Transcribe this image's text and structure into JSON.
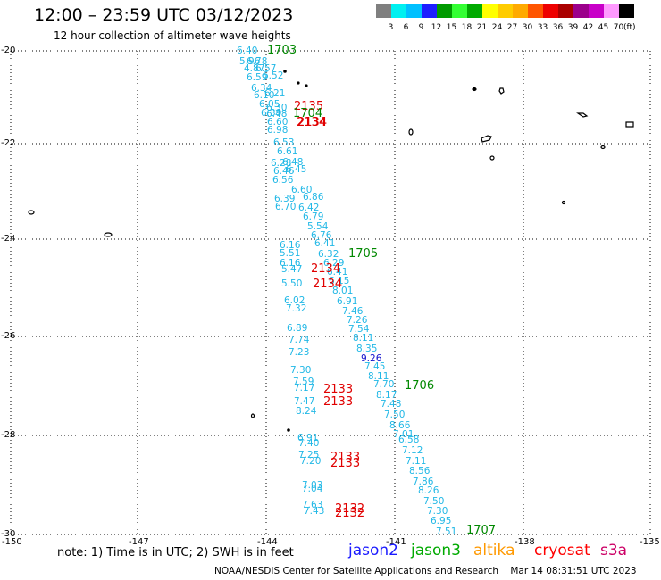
{
  "header": {
    "title": "12:00 – 23:59 UTC 03/12/2023",
    "subtitle": "12 hour collection of altimeter wave heights"
  },
  "color_scale": {
    "unit": "(ft)",
    "labels": [
      "3",
      "6",
      "9",
      "12",
      "15",
      "18",
      "21",
      "24",
      "27",
      "30",
      "33",
      "36",
      "39",
      "42",
      "45",
      "70"
    ],
    "colors": [
      "#7f7f7f",
      "#00f0f0",
      "#00c0ff",
      "#1e1eff",
      "#009a00",
      "#33ff33",
      "#00aa00",
      "#ffff00",
      "#ffcc00",
      "#ffaa00",
      "#ff5500",
      "#ee0000",
      "#aa0000",
      "#9b008b",
      "#c800c8",
      "#ff99ff",
      "#000000"
    ]
  },
  "axes": {
    "lon_labels": [
      "-150",
      "-147",
      "-144",
      "-141",
      "-138",
      "-135"
    ],
    "lat_labels": [
      "-20",
      "-22",
      "-24",
      "-26",
      "-28",
      "-30"
    ]
  },
  "wave_heights": [
    {
      "t": "6.40",
      "c": "cyan"
    },
    {
      "t": "5.96",
      "c": "cyan"
    },
    {
      "t": "6.78",
      "c": "cyan"
    },
    {
      "t": "4.87",
      "c": "cyan"
    },
    {
      "t": "6.57",
      "c": "cyan"
    },
    {
      "t": "6.52",
      "c": "cyan"
    },
    {
      "t": "6.59",
      "c": "cyan"
    },
    {
      "t": "6.34",
      "c": "cyan"
    },
    {
      "t": "6.21",
      "c": "cyan"
    },
    {
      "t": "6.10",
      "c": "cyan"
    },
    {
      "t": "6.05",
      "c": "cyan"
    },
    {
      "t": "6.30",
      "c": "cyan"
    },
    {
      "t": "6.39",
      "c": "cyan"
    },
    {
      "t": "6.48",
      "c": "cyan"
    },
    {
      "t": "6.60",
      "c": "cyan"
    },
    {
      "t": "6.98",
      "c": "cyan"
    },
    {
      "t": "6.53",
      "c": "cyan"
    },
    {
      "t": "6.61",
      "c": "cyan"
    },
    {
      "t": "6.28",
      "c": "cyan"
    },
    {
      "t": "6.48",
      "c": "cyan"
    },
    {
      "t": "6.46",
      "c": "cyan"
    },
    {
      "t": "6.45",
      "c": "cyan"
    },
    {
      "t": "6.56",
      "c": "cyan"
    },
    {
      "t": "6.60",
      "c": "cyan"
    },
    {
      "t": "6.39",
      "c": "cyan"
    },
    {
      "t": "6.86",
      "c": "cyan"
    },
    {
      "t": "6.70",
      "c": "cyan"
    },
    {
      "t": "6.42",
      "c": "cyan"
    },
    {
      "t": "6.79",
      "c": "cyan"
    },
    {
      "t": "5.54",
      "c": "cyan"
    },
    {
      "t": "6.76",
      "c": "cyan"
    },
    {
      "t": "6.16",
      "c": "cyan"
    },
    {
      "t": "6.41",
      "c": "cyan"
    },
    {
      "t": "5.51",
      "c": "cyan"
    },
    {
      "t": "6.32",
      "c": "cyan"
    },
    {
      "t": "6.16",
      "c": "cyan"
    },
    {
      "t": "6.29",
      "c": "cyan"
    },
    {
      "t": "5.47",
      "c": "cyan"
    },
    {
      "t": "6.41",
      "c": "cyan"
    },
    {
      "t": "5.50",
      "c": "cyan"
    },
    {
      "t": "6.15",
      "c": "cyan"
    },
    {
      "t": "8.01",
      "c": "cyan"
    },
    {
      "t": "6.02",
      "c": "cyan"
    },
    {
      "t": "6.91",
      "c": "cyan"
    },
    {
      "t": "7.32",
      "c": "cyan"
    },
    {
      "t": "7.46",
      "c": "cyan"
    },
    {
      "t": "7.26",
      "c": "cyan"
    },
    {
      "t": "6.89",
      "c": "cyan"
    },
    {
      "t": "7.54",
      "c": "cyan"
    },
    {
      "t": "7.74",
      "c": "cyan"
    },
    {
      "t": "8.11",
      "c": "cyan"
    },
    {
      "t": "8.35",
      "c": "cyan"
    },
    {
      "t": "7.23",
      "c": "cyan"
    },
    {
      "t": "9.26",
      "c": "blue"
    },
    {
      "t": "7.45",
      "c": "cyan"
    },
    {
      "t": "7.30",
      "c": "cyan"
    },
    {
      "t": "8.11",
      "c": "cyan"
    },
    {
      "t": "7.59",
      "c": "cyan"
    },
    {
      "t": "7.70",
      "c": "cyan"
    },
    {
      "t": "7.17",
      "c": "cyan"
    },
    {
      "t": "8.17",
      "c": "cyan"
    },
    {
      "t": "7.47",
      "c": "cyan"
    },
    {
      "t": "7.48",
      "c": "cyan"
    },
    {
      "t": "8.24",
      "c": "cyan"
    },
    {
      "t": "7.50",
      "c": "cyan"
    },
    {
      "t": "8.66",
      "c": "cyan"
    },
    {
      "t": "7.01",
      "c": "cyan"
    },
    {
      "t": "6.91",
      "c": "cyan"
    },
    {
      "t": "6.58",
      "c": "cyan"
    },
    {
      "t": "7.40",
      "c": "cyan"
    },
    {
      "t": "7.12",
      "c": "cyan"
    },
    {
      "t": "7.25",
      "c": "cyan"
    },
    {
      "t": "7.11",
      "c": "cyan"
    },
    {
      "t": "7.20",
      "c": "cyan"
    },
    {
      "t": "8.56",
      "c": "cyan"
    },
    {
      "t": "7.86",
      "c": "cyan"
    },
    {
      "t": "7.03",
      "c": "cyan"
    },
    {
      "t": "8.26",
      "c": "cyan"
    },
    {
      "t": "7.04",
      "c": "cyan"
    },
    {
      "t": "7.50",
      "c": "cyan"
    },
    {
      "t": "7.63",
      "c": "cyan"
    },
    {
      "t": "7.30",
      "c": "cyan"
    },
    {
      "t": "7.43",
      "c": "cyan"
    },
    {
      "t": "6.95",
      "c": "cyan"
    },
    {
      "t": "7.51",
      "c": "cyan"
    }
  ],
  "pass_labels": [
    {
      "t": "1703",
      "c": "green"
    },
    {
      "t": "2135",
      "c": "red"
    },
    {
      "t": "1704",
      "c": "green"
    },
    {
      "t": "2134",
      "c": "red"
    },
    {
      "t": "2134",
      "c": "red"
    },
    {
      "t": "1705",
      "c": "green"
    },
    {
      "t": "2134",
      "c": "red"
    },
    {
      "t": "2134",
      "c": "red"
    },
    {
      "t": "1706",
      "c": "green"
    },
    {
      "t": "2133",
      "c": "red"
    },
    {
      "t": "2133",
      "c": "red"
    },
    {
      "t": "2133",
      "c": "red"
    },
    {
      "t": "2133",
      "c": "red"
    },
    {
      "t": "2132",
      "c": "red"
    },
    {
      "t": "2132",
      "c": "red"
    },
    {
      "t": "1707",
      "c": "green"
    }
  ],
  "legend": {
    "note": "note:  1) Time is in UTC;  2) SWH is in feet",
    "satellites": [
      {
        "name": "jason2",
        "color": "#1a1aff"
      },
      {
        "name": "jason3",
        "color": "#00aa00"
      },
      {
        "name": "altika",
        "color": "#ff9900"
      },
      {
        "name": "cryosat",
        "color": "#ff0000"
      },
      {
        "name": "s3a",
        "color": "#cc0066"
      }
    ]
  },
  "footer": {
    "credit": "NOAA/NESDIS Center for Satellite Applications and Research",
    "timestamp": "Mar 14 08:31:51 UTC 2023"
  }
}
